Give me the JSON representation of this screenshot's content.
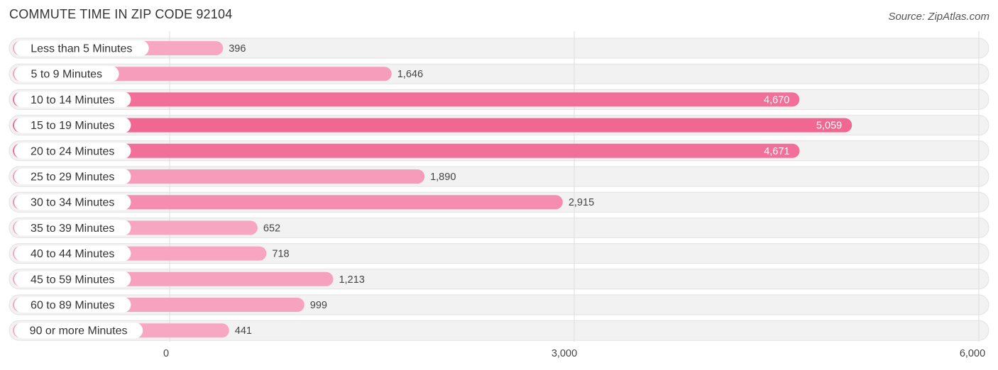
{
  "chart_data": {
    "type": "bar",
    "orientation": "horizontal",
    "title": "COMMUTE TIME IN ZIP CODE 92104",
    "source": "Source: ZipAtlas.com",
    "categories": [
      "Less than 5 Minutes",
      "5 to 9 Minutes",
      "10 to 14 Minutes",
      "15 to 19 Minutes",
      "20 to 24 Minutes",
      "25 to 29 Minutes",
      "30 to 34 Minutes",
      "35 to 39 Minutes",
      "40 to 44 Minutes",
      "45 to 59 Minutes",
      "60 to 89 Minutes",
      "90 or more Minutes"
    ],
    "values": [
      396,
      1646,
      4670,
      5059,
      4671,
      1890,
      2915,
      652,
      718,
      1213,
      999,
      441
    ],
    "value_labels": [
      "396",
      "1,646",
      "4,670",
      "5,059",
      "4,671",
      "1,890",
      "2,915",
      "652",
      "718",
      "1,213",
      "999",
      "441"
    ],
    "xlim": [
      0,
      6000
    ],
    "xticks": [
      0,
      3000,
      6000
    ],
    "xtick_labels": [
      "0",
      "3,000",
      "6,000"
    ],
    "grid": true,
    "colors": {
      "bar_light": "#f7a8c3",
      "bar_dark": "#f06792",
      "row_bg": "#f2f2f2",
      "row_border": "#e2e2e2",
      "grid": "#dddddd",
      "value_outside": "#444444",
      "value_inside": "#ffffff"
    }
  }
}
